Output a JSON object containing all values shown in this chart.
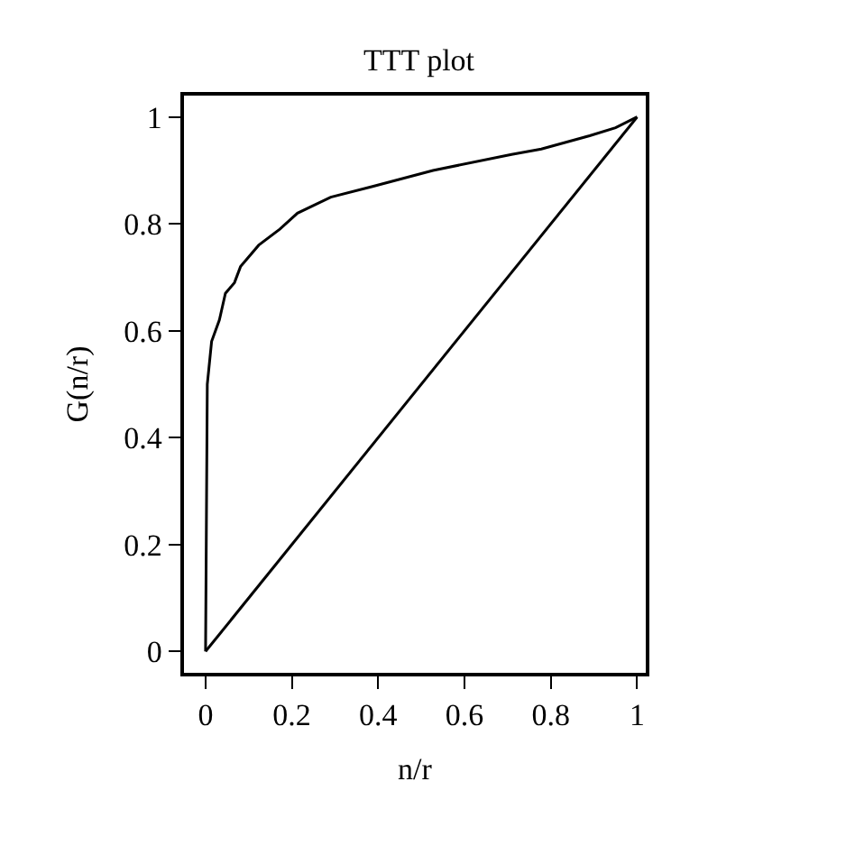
{
  "chart_data": {
    "type": "line",
    "title": "TTT plot",
    "xlabel": "n/r",
    "ylabel": "G(n/r)",
    "series": [
      {
        "color": "#000000",
        "x": [
          0,
          0.004,
          0.014,
          0.032,
          0.046,
          0.067,
          0.081,
          0.123,
          0.172,
          0.213,
          0.29,
          0.387,
          0.527,
          0.709,
          0.778,
          0.89,
          0.95,
          1
        ],
        "values": [
          0,
          0.5,
          0.58,
          0.62,
          0.67,
          0.69,
          0.72,
          0.76,
          0.79,
          0.82,
          0.85,
          0.87,
          0.9,
          0.93,
          0.94,
          0.965,
          0.98,
          1
        ]
      },
      {
        "color": "#000000",
        "x": [
          0,
          1
        ],
        "values": [
          0,
          1
        ]
      }
    ],
    "xlim": [
      -0.05,
      1.02
    ],
    "ylim": [
      -0.04,
      1.04
    ],
    "xticks": [
      0,
      0.2,
      0.4,
      0.6,
      0.8,
      1
    ],
    "yticks": [
      0,
      0.2,
      0.4,
      0.6,
      0.8,
      1
    ],
    "marker": "none",
    "line_style": "solid"
  }
}
